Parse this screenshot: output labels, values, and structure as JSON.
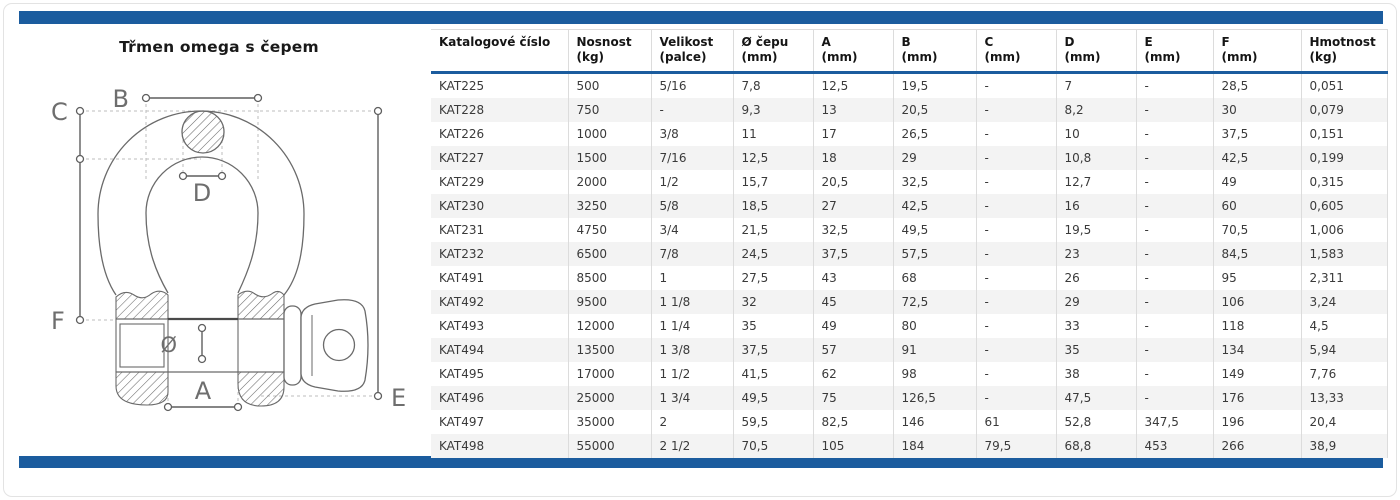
{
  "page": {
    "title": "Třmen omega s čepem"
  },
  "accent_color": "#1b5c9e",
  "diagram": {
    "name": "omega-shackle-technical-drawing",
    "labels": {
      "b": "B",
      "c": "C",
      "d": "D",
      "f": "F",
      "diameter": "Ø",
      "a": "A",
      "e": "E"
    }
  },
  "table": {
    "headers": [
      {
        "label": "Katalogové číslo",
        "unit": ""
      },
      {
        "label": "Nosnost",
        "unit": "(kg)"
      },
      {
        "label": "Velikost",
        "unit": "(palce)"
      },
      {
        "label": "Ø čepu",
        "unit": "(mm)"
      },
      {
        "label": "A",
        "unit": "(mm)"
      },
      {
        "label": "B",
        "unit": "(mm)"
      },
      {
        "label": "C",
        "unit": "(mm)"
      },
      {
        "label": "D",
        "unit": "(mm)"
      },
      {
        "label": "E",
        "unit": "(mm)"
      },
      {
        "label": "F",
        "unit": "(mm)"
      },
      {
        "label": "Hmotnost",
        "unit": "(kg)"
      }
    ],
    "rows": [
      [
        "KAT225",
        "500",
        "5/16",
        "7,8",
        "12,5",
        "19,5",
        "-",
        "7",
        "-",
        "28,5",
        "0,051"
      ],
      [
        "KAT228",
        "750",
        "-",
        "9,3",
        "13",
        "20,5",
        "-",
        "8,2",
        "-",
        "30",
        "0,079"
      ],
      [
        "KAT226",
        "1000",
        "3/8",
        "11",
        "17",
        "26,5",
        "-",
        "10",
        "-",
        "37,5",
        "0,151"
      ],
      [
        "KAT227",
        "1500",
        "7/16",
        "12,5",
        "18",
        "29",
        "-",
        "10,8",
        "-",
        "42,5",
        "0,199"
      ],
      [
        "KAT229",
        "2000",
        "1/2",
        "15,7",
        "20,5",
        "32,5",
        "-",
        "12,7",
        "-",
        "49",
        "0,315"
      ],
      [
        "KAT230",
        "3250",
        "5/8",
        "18,5",
        "27",
        "42,5",
        "-",
        "16",
        "-",
        "60",
        "0,605"
      ],
      [
        "KAT231",
        "4750",
        "3/4",
        "21,5",
        "32,5",
        "49,5",
        "-",
        "19,5",
        "-",
        "70,5",
        "1,006"
      ],
      [
        "KAT232",
        "6500",
        "7/8",
        "24,5",
        "37,5",
        "57,5",
        "-",
        "23",
        "-",
        "84,5",
        "1,583"
      ],
      [
        "KAT491",
        "8500",
        "1",
        "27,5",
        "43",
        "68",
        "-",
        "26",
        "-",
        "95",
        "2,311"
      ],
      [
        "KAT492",
        "9500",
        "1 1/8",
        "32",
        "45",
        "72,5",
        "-",
        "29",
        "-",
        "106",
        "3,24"
      ],
      [
        "KAT493",
        "12000",
        "1 1/4",
        "35",
        "49",
        "80",
        "-",
        "33",
        "-",
        "118",
        "4,5"
      ],
      [
        "KAT494",
        "13500",
        "1 3/8",
        "37,5",
        "57",
        "91",
        "-",
        "35",
        "-",
        "134",
        "5,94"
      ],
      [
        "KAT495",
        "17000",
        "1 1/2",
        "41,5",
        "62",
        "98",
        "-",
        "38",
        "-",
        "149",
        "7,76"
      ],
      [
        "KAT496",
        "25000",
        "1 3/4",
        "49,5",
        "75",
        "126,5",
        "-",
        "47,5",
        "-",
        "176",
        "13,33"
      ],
      [
        "KAT497",
        "35000",
        "2",
        "59,5",
        "82,5",
        "146",
        "61",
        "52,8",
        "347,5",
        "196",
        "20,4"
      ],
      [
        "KAT498",
        "55000",
        "2 1/2",
        "70,5",
        "105",
        "184",
        "79,5",
        "68,8",
        "453",
        "266",
        "38,9"
      ]
    ]
  }
}
